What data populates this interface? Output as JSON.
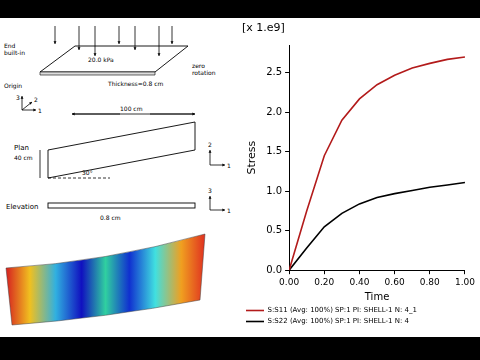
{
  "chart_data": {
    "type": "line",
    "title": "[x 1.e9]",
    "x_label": "Time",
    "y_label": "Stress",
    "x": [
      0,
      0.1,
      0.2,
      0.3,
      0.4,
      0.5,
      0.6,
      0.7,
      0.8,
      0.9,
      1.0
    ],
    "series": [
      {
        "name": "S:S11 (Avg: 100%) SP:1 PI: SHELL-1 N: 4_1",
        "color": "#b31b1b",
        "marker": "none",
        "line_style": "solid",
        "values": [
          0,
          0.75,
          1.45,
          1.9,
          2.17,
          2.35,
          2.47,
          2.56,
          2.62,
          2.67,
          2.7
        ]
      },
      {
        "name": "S:S22 (Avg: 100%) SP:1 PI: SHELL-1 N: 4",
        "color": "#000000",
        "marker": "none",
        "line_style": "solid",
        "values": [
          0,
          0.28,
          0.55,
          0.72,
          0.84,
          0.92,
          0.97,
          1.01,
          1.05,
          1.08,
          1.11
        ]
      }
    ],
    "xlim": [
      0,
      1.0
    ],
    "xticks": [
      {
        "value": 0,
        "label": "0.00"
      },
      {
        "value": 0.2,
        "label": "0.20"
      },
      {
        "value": 0.4,
        "label": "0.40"
      },
      {
        "value": 0.6,
        "label": "0.60"
      },
      {
        "value": 0.8,
        "label": "0.80"
      },
      {
        "value": 1.0,
        "label": "1.00"
      }
    ],
    "ylim": [
      0,
      2.85
    ],
    "yticks": [
      {
        "value": 0,
        "label": "0.0"
      },
      0.5,
      {
        "value": 1.0,
        "label": "1.0"
      },
      1.5,
      {
        "value": 2.0,
        "label": "2.0"
      },
      2.5
    ],
    "grid": false,
    "legend": "bottom"
  },
  "diagram": {
    "texts": {
      "end": "End built-in",
      "pressure": "20.0 kPa",
      "origin": "Origin",
      "thickness": "Thickness=0.8 cm",
      "rotation": "zero rotation",
      "length": "100 cm",
      "width": "40 cm",
      "angle": "30°",
      "plan": "Plan",
      "elevation": "Elevation",
      "elevation_thickness": "0.8 cm"
    },
    "axes": [
      "1",
      "2",
      "3"
    ]
  }
}
